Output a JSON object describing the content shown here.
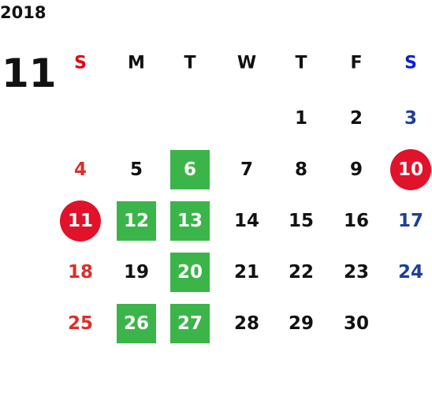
{
  "year": "2018",
  "month": "11",
  "weekdays": [
    "S",
    "M",
    "T",
    "W",
    "T",
    "F",
    "S"
  ],
  "weeks": [
    [
      null,
      null,
      null,
      null,
      "1",
      "2",
      "3"
    ],
    [
      "4",
      "5",
      "6",
      "7",
      "8",
      "9",
      "10"
    ],
    [
      "11",
      "12",
      "13",
      "14",
      "15",
      "16",
      "17"
    ],
    [
      "18",
      "19",
      "20",
      "21",
      "22",
      "23",
      "24"
    ],
    [
      "25",
      "26",
      "27",
      "28",
      "29",
      "30",
      null
    ]
  ],
  "highlights": {
    "square": [
      "6",
      "12",
      "13",
      "20",
      "26",
      "27"
    ],
    "circle": [
      "10",
      "11"
    ]
  }
}
